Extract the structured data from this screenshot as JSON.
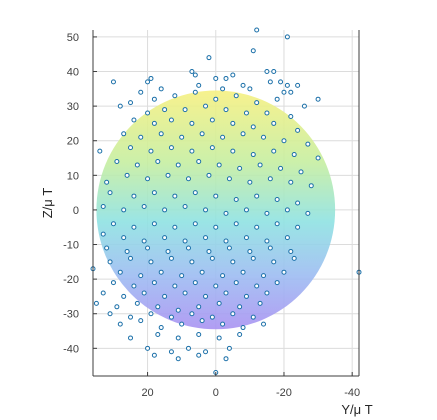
{
  "chart_data": {
    "type": "scatter",
    "xlabel": "Y/μ T",
    "ylabel": "Z/μ T",
    "xlim": [
      36,
      -42
    ],
    "ylim": [
      -48,
      52
    ],
    "x_ticks": [
      20,
      0,
      -20,
      -40
    ],
    "x_tick_labels": [
      "20",
      "0",
      "-20",
      "-40"
    ],
    "y_ticks": [
      50,
      40,
      30,
      20,
      10,
      0,
      -10,
      -20,
      -30,
      -40
    ],
    "y_tick_labels": [
      "50",
      "40",
      "30",
      "20",
      "10",
      "0",
      "-10",
      "-20",
      "-30",
      "-40"
    ],
    "grid": true,
    "background_sphere": {
      "center": [
        0,
        0
      ],
      "radius": 35,
      "colormap": "parula"
    },
    "marker_color": "#1a6fa8",
    "series": [
      {
        "values": [
          [
            -12,
            52
          ],
          [
            -21,
            50
          ],
          [
            -11,
            46
          ],
          [
            2,
            44
          ],
          [
            -17,
            40
          ],
          [
            -15,
            40
          ],
          [
            7,
            40
          ],
          [
            6,
            39
          ],
          [
            19,
            38
          ],
          [
            20,
            37
          ],
          [
            30,
            37
          ],
          [
            -5,
            39
          ],
          [
            -3,
            38
          ],
          [
            0,
            38
          ],
          [
            -16,
            37
          ],
          [
            -19,
            37
          ],
          [
            -21,
            36
          ],
          [
            -24,
            36
          ],
          [
            -20,
            34
          ],
          [
            -22,
            34
          ],
          [
            -8,
            36
          ],
          [
            5,
            36
          ],
          [
            16,
            35
          ],
          [
            22,
            34
          ],
          [
            -2,
            35
          ],
          [
            -10,
            35
          ],
          [
            -30,
            32
          ],
          [
            28,
            30
          ],
          [
            25,
            31
          ],
          [
            18,
            32
          ],
          [
            12,
            33
          ],
          [
            6,
            34
          ],
          [
            0,
            32
          ],
          [
            -6,
            33
          ],
          [
            -12,
            31
          ],
          [
            -18,
            32
          ],
          [
            -26,
            30
          ],
          [
            20,
            28
          ],
          [
            15,
            29
          ],
          [
            9,
            29
          ],
          [
            3,
            30
          ],
          [
            -3,
            29
          ],
          [
            -9,
            28
          ],
          [
            -15,
            28
          ],
          [
            -22,
            27
          ],
          [
            24,
            26
          ],
          [
            18,
            25
          ],
          [
            13,
            26
          ],
          [
            7,
            25
          ],
          [
            1,
            26
          ],
          [
            -5,
            25
          ],
          [
            -11,
            24
          ],
          [
            -17,
            25
          ],
          [
            -24,
            23
          ],
          [
            27,
            22
          ],
          [
            22,
            21
          ],
          [
            16,
            22
          ],
          [
            10,
            21
          ],
          [
            4,
            22
          ],
          [
            -2,
            21
          ],
          [
            -8,
            22
          ],
          [
            -14,
            21
          ],
          [
            -20,
            20
          ],
          [
            -27,
            19
          ],
          [
            25,
            18
          ],
          [
            19,
            17
          ],
          [
            13,
            18
          ],
          [
            7,
            17
          ],
          [
            1,
            18
          ],
          [
            -5,
            17
          ],
          [
            -11,
            16
          ],
          [
            -17,
            17
          ],
          [
            -23,
            16
          ],
          [
            -30,
            15
          ],
          [
            34,
            17
          ],
          [
            29,
            14
          ],
          [
            23,
            13
          ],
          [
            17,
            14
          ],
          [
            11,
            13
          ],
          [
            5,
            14
          ],
          [
            -1,
            13
          ],
          [
            -7,
            12
          ],
          [
            -13,
            13
          ],
          [
            -19,
            12
          ],
          [
            -25,
            11
          ],
          [
            32,
            8
          ],
          [
            26,
            10
          ],
          [
            20,
            9
          ],
          [
            14,
            10
          ],
          [
            8,
            9
          ],
          [
            2,
            10
          ],
          [
            -4,
            9
          ],
          [
            -10,
            8
          ],
          [
            -16,
            9
          ],
          [
            -22,
            8
          ],
          [
            -28,
            7
          ],
          [
            31,
            5
          ],
          [
            24,
            4
          ],
          [
            18,
            5
          ],
          [
            12,
            4
          ],
          [
            6,
            5
          ],
          [
            0,
            4
          ],
          [
            -6,
            3
          ],
          [
            -12,
            4
          ],
          [
            -18,
            3
          ],
          [
            -24,
            2
          ],
          [
            33,
            1
          ],
          [
            27,
            0
          ],
          [
            21,
            1
          ],
          [
            15,
            0
          ],
          [
            9,
            1
          ],
          [
            3,
            0
          ],
          [
            -3,
            -1
          ],
          [
            -9,
            0
          ],
          [
            -15,
            -1
          ],
          [
            -21,
            0
          ],
          [
            -27,
            -1
          ],
          [
            30,
            -4
          ],
          [
            24,
            -5
          ],
          [
            18,
            -4
          ],
          [
            12,
            -5
          ],
          [
            6,
            -4
          ],
          [
            0,
            -5
          ],
          [
            -6,
            -4
          ],
          [
            -12,
            -5
          ],
          [
            -18,
            -4
          ],
          [
            -24,
            -5
          ],
          [
            33,
            -7
          ],
          [
            27,
            -8
          ],
          [
            21,
            -9
          ],
          [
            15,
            -8
          ],
          [
            9,
            -9
          ],
          [
            3,
            -8
          ],
          [
            -3,
            -9
          ],
          [
            -9,
            -8
          ],
          [
            -15,
            -9
          ],
          [
            -21,
            -8
          ],
          [
            32,
            -11
          ],
          [
            26,
            -12
          ],
          [
            20,
            -11
          ],
          [
            14,
            -12
          ],
          [
            8,
            -11
          ],
          [
            2,
            -12
          ],
          [
            -4,
            -11
          ],
          [
            -10,
            -12
          ],
          [
            -16,
            -11
          ],
          [
            -22,
            -12
          ],
          [
            31,
            -15
          ],
          [
            25,
            -14
          ],
          [
            19,
            -15
          ],
          [
            13,
            -14
          ],
          [
            7,
            -15
          ],
          [
            1,
            -14
          ],
          [
            -5,
            -15
          ],
          [
            -11,
            -14
          ],
          [
            -17,
            -15
          ],
          [
            -23,
            -14
          ],
          [
            36,
            -17
          ],
          [
            28,
            -18
          ],
          [
            22,
            -19
          ],
          [
            16,
            -18
          ],
          [
            10,
            -19
          ],
          [
            4,
            -18
          ],
          [
            -2,
            -19
          ],
          [
            -8,
            -18
          ],
          [
            -14,
            -19
          ],
          [
            -20,
            -18
          ],
          [
            -42,
            -18
          ],
          [
            30,
            -21
          ],
          [
            24,
            -22
          ],
          [
            18,
            -21
          ],
          [
            12,
            -22
          ],
          [
            6,
            -21
          ],
          [
            0,
            -22
          ],
          [
            -6,
            -21
          ],
          [
            -12,
            -22
          ],
          [
            -18,
            -21
          ],
          [
            33,
            -24
          ],
          [
            27,
            -25
          ],
          [
            21,
            -24
          ],
          [
            15,
            -25
          ],
          [
            9,
            -24
          ],
          [
            3,
            -25
          ],
          [
            -3,
            -24
          ],
          [
            -9,
            -25
          ],
          [
            -15,
            -24
          ],
          [
            35,
            -27
          ],
          [
            29,
            -28
          ],
          [
            23,
            -27
          ],
          [
            17,
            -28
          ],
          [
            11,
            -29
          ],
          [
            5,
            -28
          ],
          [
            -1,
            -27
          ],
          [
            -7,
            -28
          ],
          [
            -13,
            -27
          ],
          [
            31,
            -30
          ],
          [
            25,
            -31
          ],
          [
            19,
            -30
          ],
          [
            13,
            -31
          ],
          [
            7,
            -30
          ],
          [
            1,
            -31
          ],
          [
            -5,
            -30
          ],
          [
            -11,
            -31
          ],
          [
            28,
            -33
          ],
          [
            22,
            -32
          ],
          [
            16,
            -34
          ],
          [
            10,
            -33
          ],
          [
            4,
            -32
          ],
          [
            -2,
            -33
          ],
          [
            -8,
            -34
          ],
          [
            -14,
            -33
          ],
          [
            25,
            -37
          ],
          [
            17,
            -36
          ],
          [
            11,
            -37
          ],
          [
            5,
            -36
          ],
          [
            -1,
            -37
          ],
          [
            -7,
            -36
          ],
          [
            20,
            -40
          ],
          [
            13,
            -41
          ],
          [
            8,
            -40
          ],
          [
            3,
            -41
          ],
          [
            -4,
            -40
          ],
          [
            18,
            -42
          ],
          [
            11,
            -43
          ],
          [
            5,
            -42
          ],
          [
            -3,
            -43
          ],
          [
            0,
            -47
          ]
        ]
      }
    ]
  }
}
